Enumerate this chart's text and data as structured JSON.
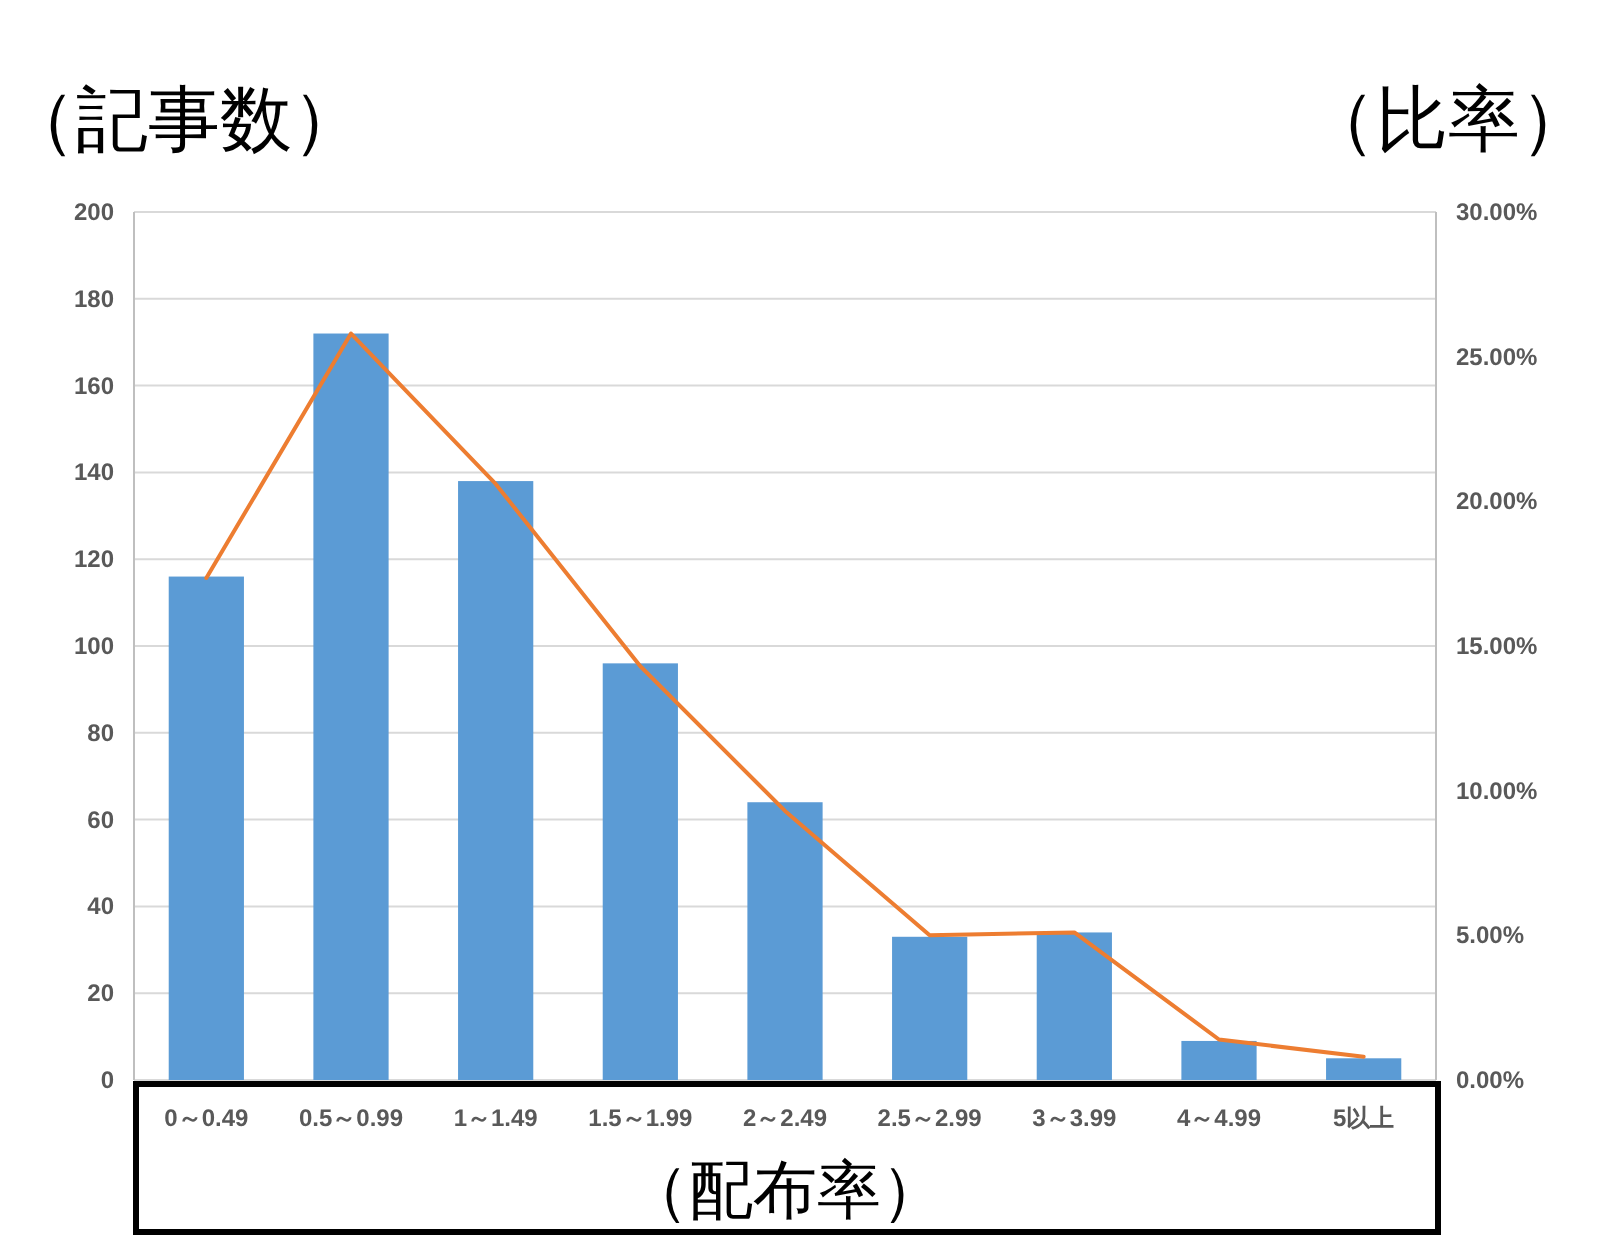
{
  "chart_data": {
    "type": "bar",
    "ylabel": "（記事数）",
    "y2label": "（比率）",
    "xlabel": "（配布率）",
    "categories": [
      "0～0.49",
      "0.5～0.99",
      "1～1.49",
      "1.5～1.99",
      "2～2.49",
      "2.5～2.99",
      "3～3.99",
      "4～4.99",
      "5以上"
    ],
    "series": [
      {
        "color": "#5b9bd5",
        "values": [
          116,
          172,
          138,
          96,
          64,
          33,
          34,
          9,
          5
        ]
      },
      {
        "type": "line",
        "axis": "y2",
        "color": "#ed7d31",
        "values": [
          17.35,
          25.8,
          20.6,
          14.3,
          9.3,
          5.0,
          5.1,
          1.4,
          0.8
        ]
      }
    ],
    "ylim": [
      0,
      200
    ],
    "yticks": [
      0,
      20,
      40,
      60,
      80,
      100,
      120,
      140,
      160,
      180,
      200
    ],
    "y2lim": [
      0,
      30
    ],
    "y2ticks": [
      {
        "value": 0,
        "label": "0.00%"
      },
      {
        "value": 5,
        "label": "5.00%"
      },
      {
        "value": 10,
        "label": "10.00%"
      },
      {
        "value": 15,
        "label": "15.00%"
      },
      {
        "value": 20,
        "label": "20.00%"
      },
      {
        "value": 25,
        "label": "25.00%"
      },
      {
        "value": 30,
        "label": "30.00%"
      }
    ],
    "grid": "y",
    "marker": "none",
    "line_style": "solid"
  }
}
